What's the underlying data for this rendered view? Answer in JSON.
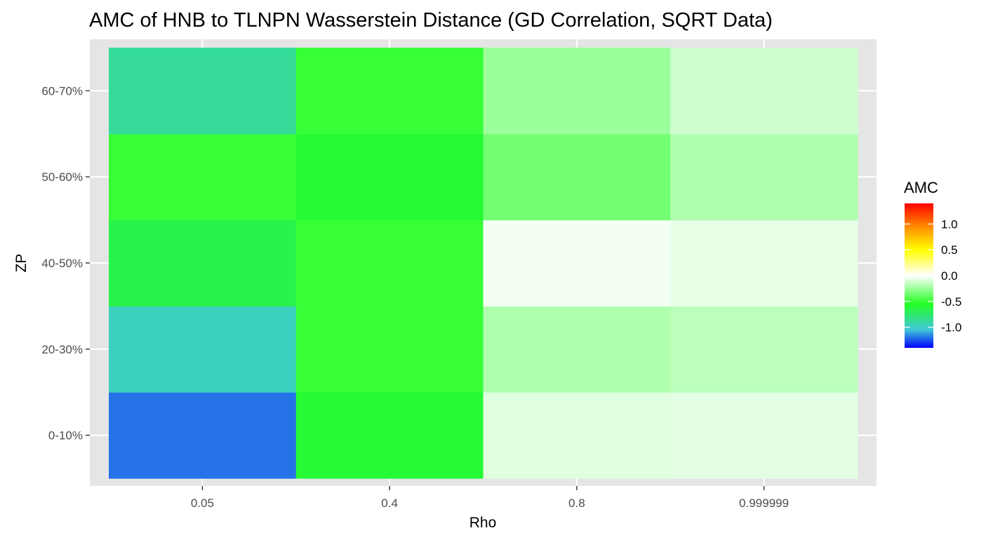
{
  "chart_data": {
    "type": "heatmap",
    "title": "AMC of HNB to TLNPN Wasserstein Distance (GD Correlation, SQRT Data)",
    "xlabel": "Rho",
    "ylabel": "ZP",
    "x_categories": [
      "0.05",
      "0.4",
      "0.8",
      "0.999999"
    ],
    "y_categories": [
      "0-10%",
      "20-30%",
      "40-50%",
      "50-60%",
      "60-70%"
    ],
    "cells": [
      {
        "x": "0.05",
        "y": "0-10%",
        "value": -1.2
      },
      {
        "x": "0.4",
        "y": "0-10%",
        "value": -0.6
      },
      {
        "x": "0.8",
        "y": "0-10%",
        "value": -0.08
      },
      {
        "x": "0.999999",
        "y": "0-10%",
        "value": -0.07
      },
      {
        "x": "0.05",
        "y": "20-30%",
        "value": -0.98
      },
      {
        "x": "0.4",
        "y": "20-30%",
        "value": -0.5
      },
      {
        "x": "0.8",
        "y": "20-30%",
        "value": -0.2
      },
      {
        "x": "0.999999",
        "y": "20-30%",
        "value": -0.17
      },
      {
        "x": "0.05",
        "y": "40-50%",
        "value": -0.66
      },
      {
        "x": "0.4",
        "y": "40-50%",
        "value": -0.5
      },
      {
        "x": "0.8",
        "y": "40-50%",
        "value": -0.03
      },
      {
        "x": "0.999999",
        "y": "40-50%",
        "value": -0.06
      },
      {
        "x": "0.05",
        "y": "50-60%",
        "value": -0.5
      },
      {
        "x": "0.4",
        "y": "50-60%",
        "value": -0.6
      },
      {
        "x": "0.8",
        "y": "50-60%",
        "value": -0.35
      },
      {
        "x": "0.999999",
        "y": "50-60%",
        "value": -0.2
      },
      {
        "x": "0.05",
        "y": "60-70%",
        "value": -0.88
      },
      {
        "x": "0.4",
        "y": "60-70%",
        "value": -0.5
      },
      {
        "x": "0.8",
        "y": "60-70%",
        "value": -0.25
      },
      {
        "x": "0.999999",
        "y": "60-70%",
        "value": -0.12
      }
    ],
    "legend": {
      "title": "AMC",
      "breaks": [
        1.0,
        0.5,
        0.0,
        -0.5,
        -1.0
      ],
      "break_labels": [
        "1.0",
        "0.5",
        "0.0",
        "-0.5",
        "-1.0"
      ],
      "limits": [
        -1.4,
        1.4
      ],
      "placement": "right"
    },
    "grid": true,
    "colors": {
      "panel_bg": "#e5e5e5",
      "grid": "#ffffff",
      "scale": [
        {
          "value": -1.4,
          "color": "#0000ff"
        },
        {
          "value": -1.05,
          "color": "#40c8d8"
        },
        {
          "value": -0.55,
          "color": "#22ff22"
        },
        {
          "value": 0.0,
          "color": "#ffffff"
        },
        {
          "value": 0.5,
          "color": "#ffff00"
        },
        {
          "value": 0.95,
          "color": "#ff8c00"
        },
        {
          "value": 1.4,
          "color": "#ff0000"
        }
      ]
    }
  }
}
